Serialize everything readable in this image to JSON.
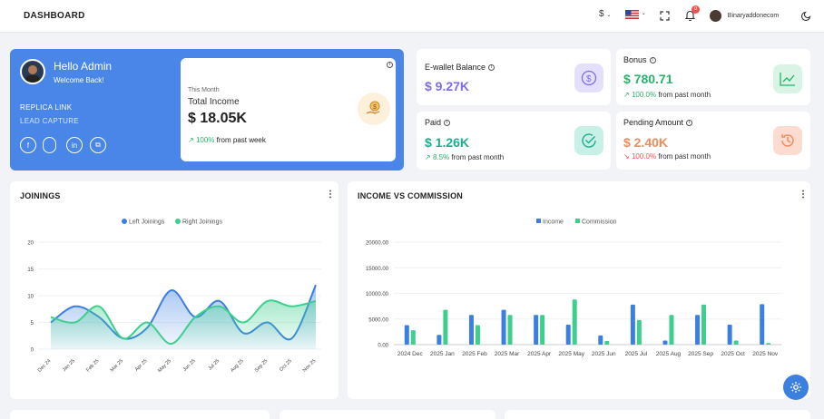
{
  "header": {
    "title": "DASHBOARD",
    "currency": "$",
    "username": "Binaryaddonecom",
    "notification_count": "0"
  },
  "profile": {
    "greeting": "Hello Admin",
    "welcome": "Welcome Back!",
    "replica_link": "REPLICA LINK",
    "lead_capture": "LEAD CAPTURE",
    "income_period": "This Month",
    "income_title": "Total Income",
    "income_value": "$ 18.05K",
    "income_change": "100%",
    "income_change_text": "from past week"
  },
  "stats": [
    {
      "title": "E-wallet Balance",
      "value": "$ 9.27K",
      "color": "#7c6ee8",
      "change": "",
      "change_text": ""
    },
    {
      "title": "Bonus",
      "value": "$ 780.71",
      "color": "#27b36a",
      "change": "100.0%",
      "change_text": "from past month"
    },
    {
      "title": "Paid",
      "value": "$ 1.26K",
      "color": "#1bae8e",
      "change": "8.5%",
      "change_text": "from past month"
    },
    {
      "title": "Pending Amount",
      "value": "$ 2.40K",
      "color": "#ef8b5a",
      "change": "100.0%",
      "change_text": "from past month"
    }
  ],
  "joinings": {
    "title": "JOININGS",
    "chart_data": {
      "type": "area",
      "categories": [
        "Dec 24",
        "Jan 25",
        "Feb 25",
        "Mar 25",
        "Apr 25",
        "May 25",
        "Jun 25",
        "Jul 25",
        "Aug 25",
        "Sep 25",
        "Oct 25",
        "Nov 25"
      ],
      "series": [
        {
          "name": "Left Joinings",
          "color": "#3b7fe0",
          "values": [
            5,
            8,
            6,
            2,
            4,
            11,
            6,
            9,
            3,
            5,
            2,
            12
          ]
        },
        {
          "name": "Right Joinings",
          "color": "#3ecf8e",
          "values": [
            6,
            5,
            8,
            2,
            5,
            1,
            6,
            8,
            5,
            9,
            8,
            9
          ]
        }
      ],
      "ylim": [
        0,
        20
      ],
      "yticks": [
        "0",
        "5",
        "10",
        "15",
        "20"
      ]
    }
  },
  "income_commission": {
    "title": "INCOME VS COMMISSION",
    "chart_data": {
      "type": "bar",
      "categories": [
        "2024 Dec",
        "2025 Jan",
        "2025 Feb",
        "2025 Mar",
        "2025 Apr",
        "2025 May",
        "2025 Jun",
        "2025 Jul",
        "2025 Aug",
        "2025 Sep",
        "2025 Oct",
        "2025 Nov"
      ],
      "series": [
        {
          "name": "Income",
          "color": "#3b7fe0",
          "values": [
            3800,
            1900,
            5800,
            6800,
            5800,
            3900,
            1800,
            7800,
            800,
            5800,
            3900,
            7900
          ]
        },
        {
          "name": "Commission",
          "color": "#3ecf8e",
          "values": [
            2800,
            6800,
            3800,
            5800,
            5800,
            8800,
            700,
            4800,
            5800,
            7800,
            800,
            300
          ]
        }
      ],
      "ylim": [
        0,
        20000
      ],
      "yticks": [
        "0.00",
        "5000.00",
        "10000.00",
        "15000.00",
        "20000.00"
      ]
    }
  }
}
